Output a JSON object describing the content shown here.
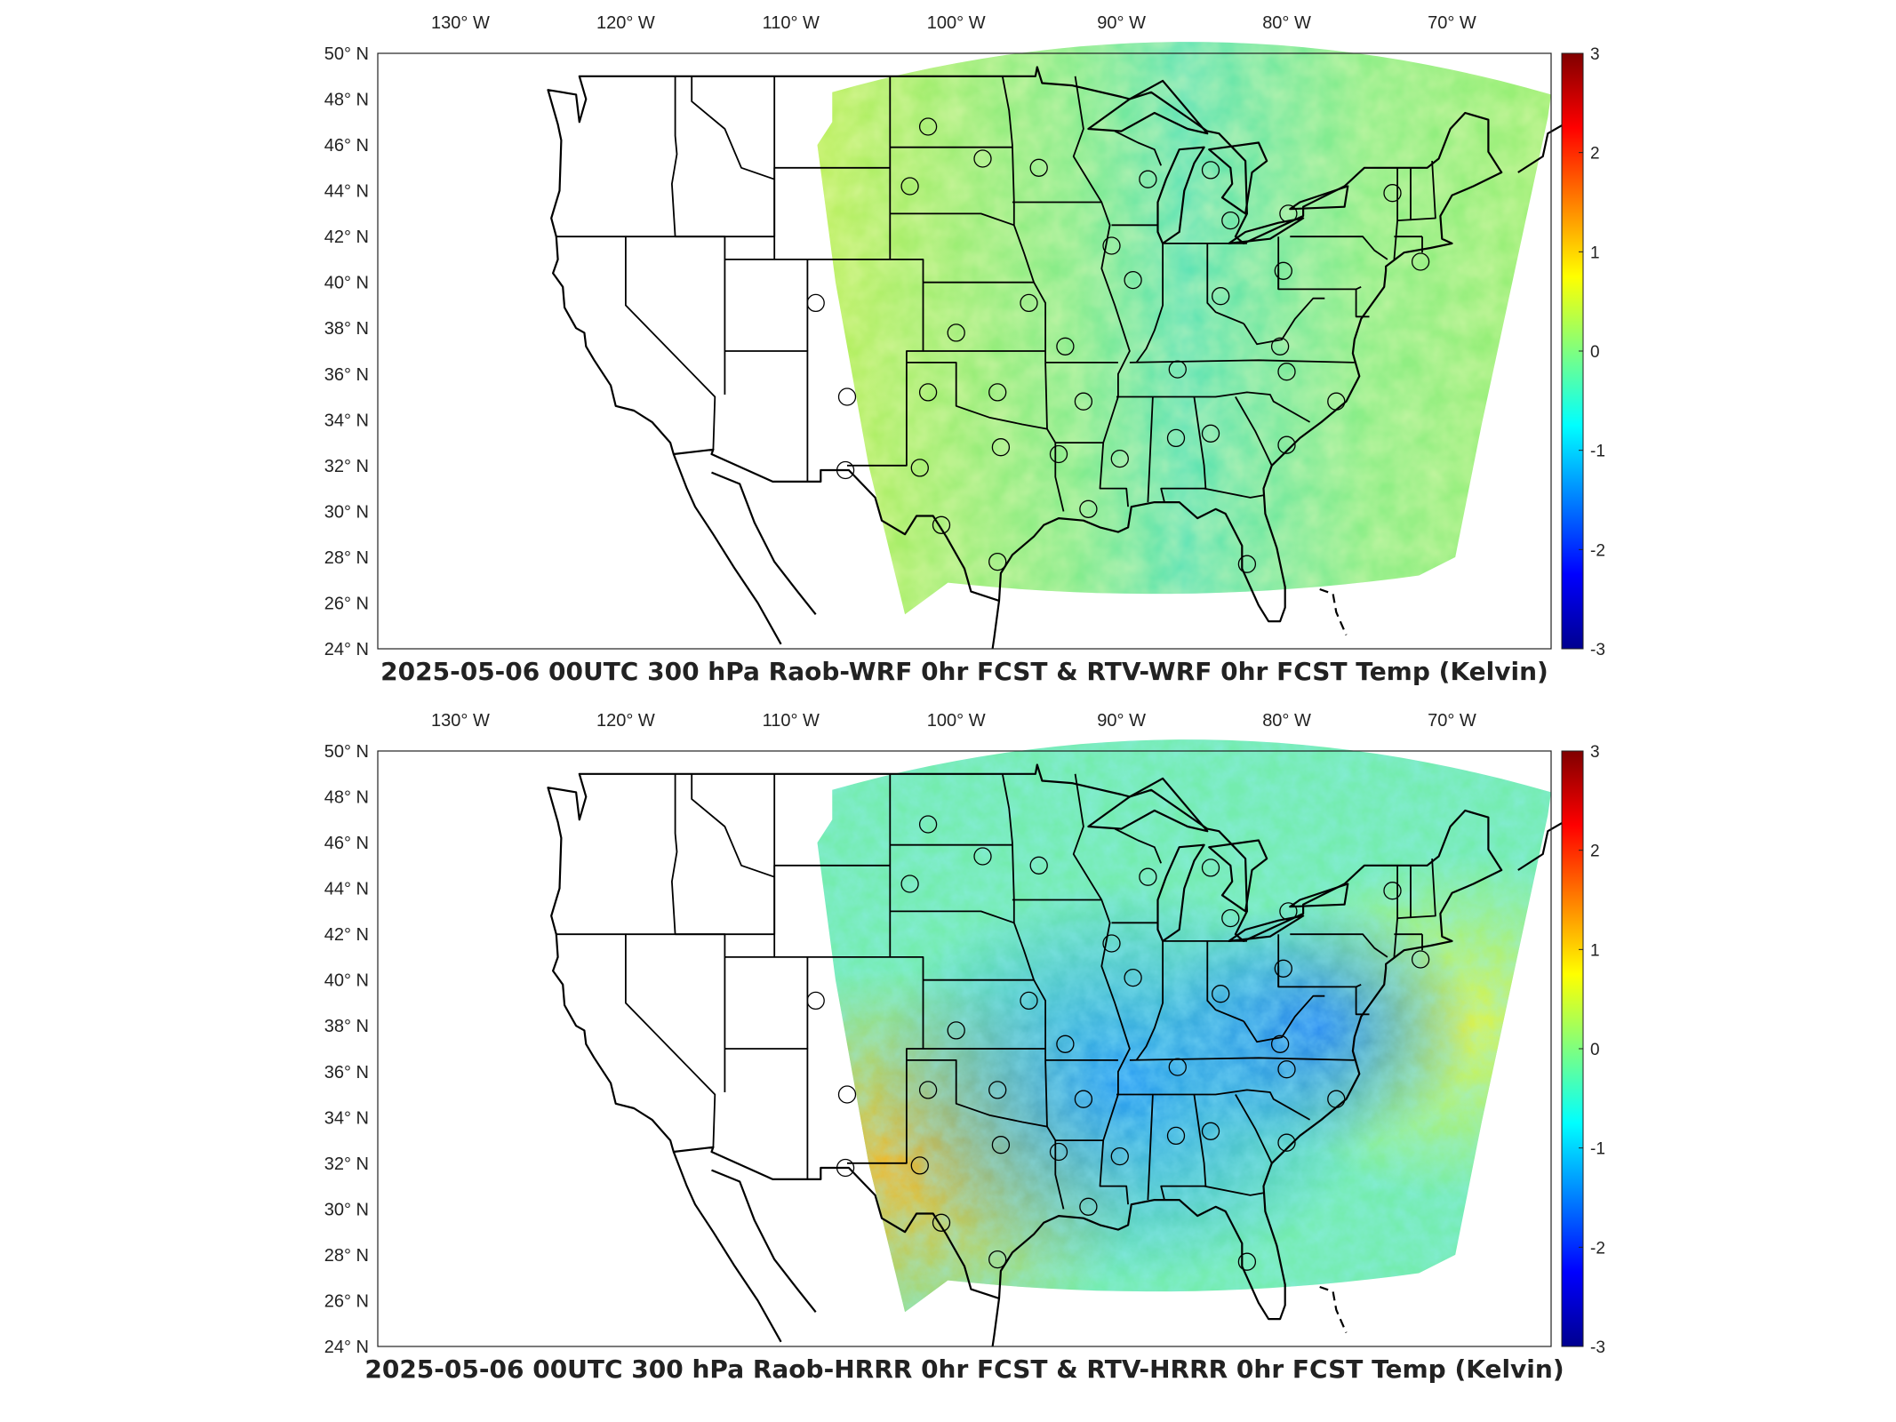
{
  "panels": [
    {
      "title": "2025-05-06 00UTC 300 hPa Raob-WRF 0hr FCST & RTV-WRF 0hr FCST Temp (Kelvin)",
      "field_style": "wrf"
    },
    {
      "title": "2025-05-06 00UTC 300 hPa Raob-HRRR 0hr FCST & RTV-HRRR 0hr FCST Temp (Kelvin)",
      "field_style": "hrrr"
    }
  ],
  "lon_ticks": [
    {
      "lon": -130,
      "num": "130",
      "dir": "W"
    },
    {
      "lon": -120,
      "num": "120",
      "dir": "W"
    },
    {
      "lon": -110,
      "num": "110",
      "dir": "W"
    },
    {
      "lon": -100,
      "num": "100",
      "dir": "W"
    },
    {
      "lon": -90,
      "num": "90",
      "dir": "W"
    },
    {
      "lon": -80,
      "num": "80",
      "dir": "W"
    },
    {
      "lon": -70,
      "num": "70",
      "dir": "W"
    }
  ],
  "lat_ticks": [
    {
      "lat": 50,
      "num": "50",
      "dir": "N"
    },
    {
      "lat": 48,
      "num": "48",
      "dir": "N"
    },
    {
      "lat": 46,
      "num": "46",
      "dir": "N"
    },
    {
      "lat": 44,
      "num": "44",
      "dir": "N"
    },
    {
      "lat": 42,
      "num": "42",
      "dir": "N"
    },
    {
      "lat": 40,
      "num": "40",
      "dir": "N"
    },
    {
      "lat": 38,
      "num": "38",
      "dir": "N"
    },
    {
      "lat": 36,
      "num": "36",
      "dir": "N"
    },
    {
      "lat": 34,
      "num": "34",
      "dir": "N"
    },
    {
      "lat": 32,
      "num": "32",
      "dir": "N"
    },
    {
      "lat": 30,
      "num": "30",
      "dir": "N"
    },
    {
      "lat": 28,
      "num": "28",
      "dir": "N"
    },
    {
      "lat": 26,
      "num": "26",
      "dir": "N"
    },
    {
      "lat": 24,
      "num": "24",
      "dir": "N"
    }
  ],
  "colorbar": {
    "ticks": [
      "3",
      "2",
      "1",
      "0",
      "-1",
      "-2",
      "-3"
    ],
    "range": [
      -3,
      3
    ],
    "colormap": [
      "#00008f",
      "#0000ff",
      "#00ffff",
      "#7fff7f",
      "#ffff00",
      "#ff0000",
      "#800000"
    ]
  },
  "stations": [
    {
      "lon": -101.7,
      "lat": 46.8
    },
    {
      "lon": -98.4,
      "lat": 45.4
    },
    {
      "lon": -95.0,
      "lat": 45.0
    },
    {
      "lon": -102.8,
      "lat": 44.2
    },
    {
      "lon": -88.4,
      "lat": 44.5
    },
    {
      "lon": -84.6,
      "lat": 44.9
    },
    {
      "lon": -83.4,
      "lat": 42.7
    },
    {
      "lon": -79.9,
      "lat": 43.0
    },
    {
      "lon": -73.6,
      "lat": 43.9
    },
    {
      "lon": -90.6,
      "lat": 41.6
    },
    {
      "lon": -89.3,
      "lat": 40.1
    },
    {
      "lon": -84.0,
      "lat": 39.4
    },
    {
      "lon": -80.2,
      "lat": 40.5
    },
    {
      "lon": -71.9,
      "lat": 40.9
    },
    {
      "lon": -108.5,
      "lat": 39.1
    },
    {
      "lon": -95.6,
      "lat": 39.1
    },
    {
      "lon": -100.0,
      "lat": 37.8
    },
    {
      "lon": -93.4,
      "lat": 37.2
    },
    {
      "lon": -86.6,
      "lat": 36.2
    },
    {
      "lon": -80.4,
      "lat": 37.2
    },
    {
      "lon": -80.0,
      "lat": 36.1
    },
    {
      "lon": -106.6,
      "lat": 35.0
    },
    {
      "lon": -101.7,
      "lat": 35.2
    },
    {
      "lon": -97.5,
      "lat": 35.2
    },
    {
      "lon": -92.3,
      "lat": 34.8
    },
    {
      "lon": -77.0,
      "lat": 34.8
    },
    {
      "lon": -97.3,
      "lat": 32.8
    },
    {
      "lon": -93.8,
      "lat": 32.5
    },
    {
      "lon": -90.1,
      "lat": 32.3
    },
    {
      "lon": -86.7,
      "lat": 33.2
    },
    {
      "lon": -84.6,
      "lat": 33.4
    },
    {
      "lon": -80.0,
      "lat": 32.9
    },
    {
      "lon": -106.7,
      "lat": 31.8
    },
    {
      "lon": -102.2,
      "lat": 31.9
    },
    {
      "lon": -100.9,
      "lat": 29.4
    },
    {
      "lon": -92.0,
      "lat": 30.1
    },
    {
      "lon": -97.5,
      "lat": 27.8
    },
    {
      "lon": -82.4,
      "lat": 27.7
    }
  ]
}
